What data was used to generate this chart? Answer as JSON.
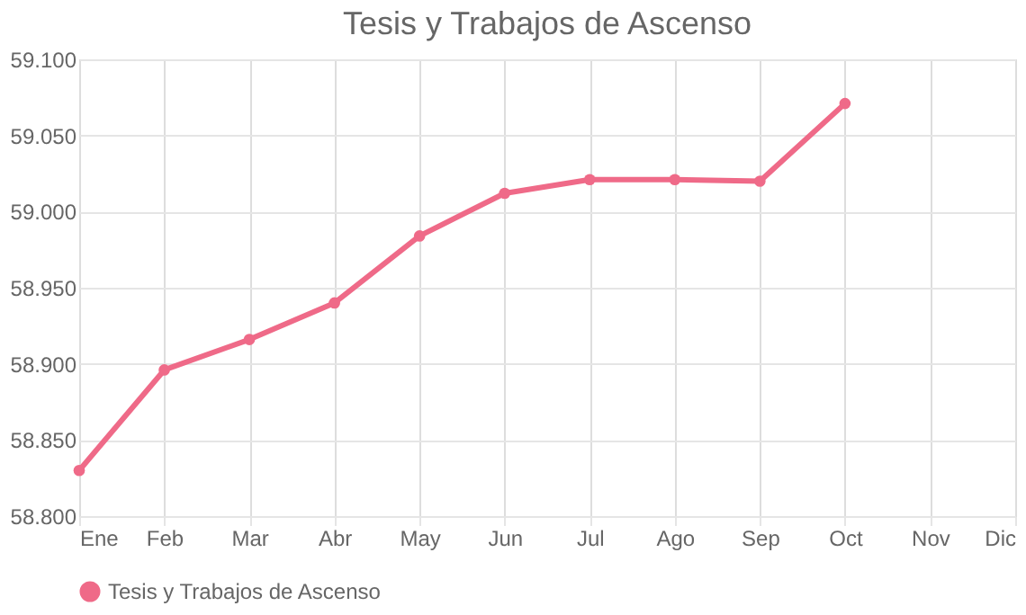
{
  "chart_data": {
    "type": "line",
    "title": "Tesis y Trabajos de Ascenso",
    "categories": [
      "Ene",
      "Feb",
      "Mar",
      "Abr",
      "May",
      "Jun",
      "Jul",
      "Ago",
      "Sep",
      "Oct",
      "Nov",
      "Dic"
    ],
    "series": [
      {
        "name": "Tesis y Trabajos de Ascenso",
        "color": "#ef6a88",
        "values": [
          58830,
          58896,
          58916,
          58940,
          58984,
          59012,
          59021,
          59021,
          59020,
          59071,
          null,
          null
        ]
      }
    ],
    "ylim": [
      58800,
      59100
    ],
    "yticks": [
      {
        "value": 58800,
        "label": "58.800"
      },
      {
        "value": 58850,
        "label": "58.850"
      },
      {
        "value": 58900,
        "label": "58.900"
      },
      {
        "value": 58950,
        "label": "58.950"
      },
      {
        "value": 59000,
        "label": "59.000"
      },
      {
        "value": 59050,
        "label": "59.050"
      },
      {
        "value": 59100,
        "label": "59.100"
      }
    ],
    "grid": true,
    "legend": "bottom",
    "marker": "circle",
    "line_style": "solid"
  }
}
